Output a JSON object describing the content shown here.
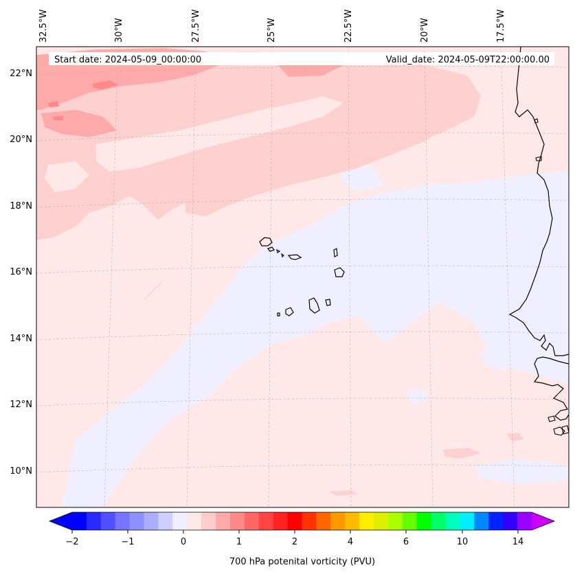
{
  "header": {
    "start_date": "Start date: 2024-05-09_00:00:00",
    "valid_date": "Valid_date: 2024-05-09T22:00:00.00"
  },
  "lon_labels": [
    "32.5°W",
    "30°W",
    "27.5°W",
    "25°W",
    "22.5°W",
    "20°W",
    "17.5°W"
  ],
  "lat_labels": [
    "22°N",
    "20°N",
    "18°N",
    "16°N",
    "14°N",
    "12°N",
    "10°N"
  ],
  "colorbar": {
    "label": "700 hPa potenital vorticity (PVU)",
    "ticks": [
      "−2",
      "−1",
      "0",
      "1",
      "2",
      "4",
      "6",
      "10",
      "14"
    ],
    "colors": [
      "#0000ff",
      "#2a2aff",
      "#5050ff",
      "#7575ff",
      "#9090ff",
      "#adadff",
      "#cfcfff",
      "#efefff",
      "#ffe8e8",
      "#ffcccc",
      "#ffaaaa",
      "#ff8888",
      "#ff6666",
      "#ff4444",
      "#ff2222",
      "#ff0000",
      "#ff3300",
      "#ff6600",
      "#ff9900",
      "#ffbb00",
      "#ffee00",
      "#ddee00",
      "#aaff00",
      "#66ff00",
      "#00ff00",
      "#00ff66",
      "#00ffbb",
      "#00eeff",
      "#0088ff",
      "#0022ff",
      "#3300ff",
      "#9900ff"
    ],
    "over_color": "#cc00ff",
    "under_color": "#0000ff"
  },
  "field_colors": {
    "background": "#ffe8e8",
    "negative": "#efefff",
    "light_positive": "#ffd0d0",
    "medium_positive": "#ffaaaa",
    "strong_positive": "#ff8888"
  }
}
